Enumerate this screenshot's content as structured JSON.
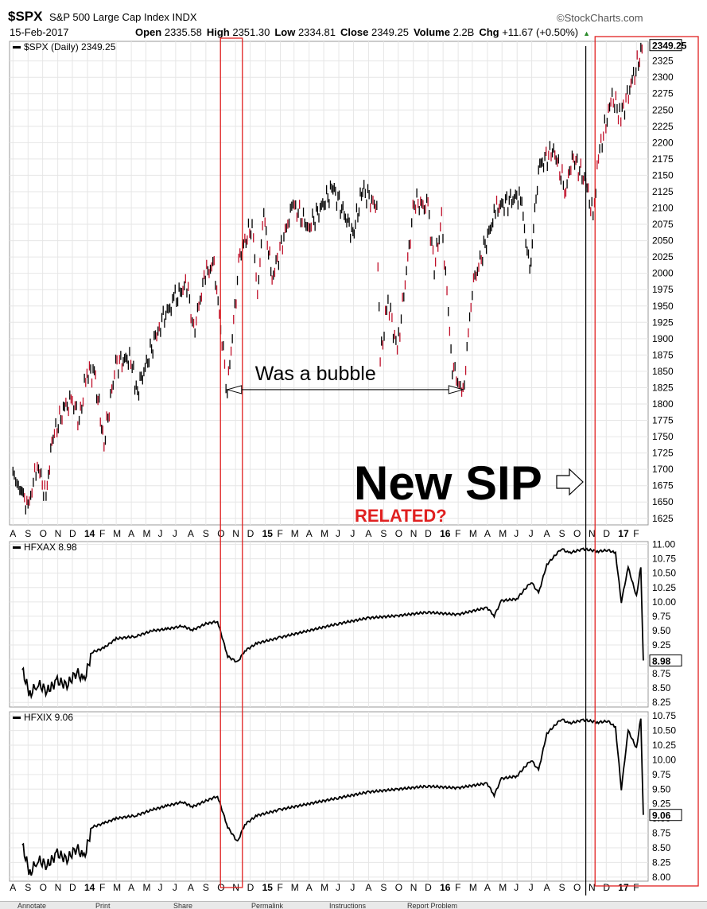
{
  "header": {
    "symbol": "$SPX",
    "name": "S&P 500 Large Cap Index",
    "exchange": "INDX",
    "brand": "©StockCharts.com",
    "date": "15-Feb-2017",
    "ohlc": [
      {
        "label": "Open",
        "value": "2335.58"
      },
      {
        "label": "High",
        "value": "2351.30"
      },
      {
        "label": "Low",
        "value": "2334.81"
      },
      {
        "label": "Close",
        "value": "2349.25"
      },
      {
        "label": "Volume",
        "value": "2.2B"
      },
      {
        "label": "Chg",
        "value": "+11.67 (+0.50%)"
      }
    ],
    "chg_arrow": "up-triangle-icon"
  },
  "colors": {
    "up": "#000000",
    "down": "#c0102a",
    "box": "#e02020",
    "annotation_red": "#e02020",
    "grid": "#e6e6e6"
  },
  "chart_data": [
    {
      "type": "candlestick",
      "legend": "$SPX (Daily) 2349.25",
      "last_value": "2349.25",
      "ylim": [
        1615,
        2355
      ],
      "yticks": [
        "1625",
        "1650",
        "1675",
        "1700",
        "1725",
        "1750",
        "1775",
        "1800",
        "1825",
        "1850",
        "1875",
        "1900",
        "1925",
        "1950",
        "1975",
        "2000",
        "2025",
        "2050",
        "2075",
        "2100",
        "2125",
        "2150",
        "2175",
        "2200",
        "2225",
        "2250",
        "2275",
        "2300",
        "2325"
      ],
      "x_month_labels": [
        "A",
        "S",
        "O",
        "N",
        "D",
        "14",
        "F",
        "M",
        "A",
        "M",
        "J",
        "J",
        "A",
        "S",
        "O",
        "N",
        "D",
        "15",
        "F",
        "M",
        "A",
        "M",
        "J",
        "J",
        "A",
        "S",
        "O",
        "N",
        "D",
        "16",
        "F",
        "M",
        "A",
        "M",
        "J",
        "J",
        "A",
        "S",
        "O",
        "N",
        "D",
        "17",
        "F"
      ],
      "x_range": [
        "2013-08",
        "2017-02-15"
      ],
      "series": [
        {
          "name": "$SPX",
          "points": [
            [
              "2013-08-01",
              1690
            ],
            [
              "2013-08-15",
              1675
            ],
            [
              "2013-09-01",
              1640
            ],
            [
              "2013-09-20",
              1710
            ],
            [
              "2013-10-08",
              1655
            ],
            [
              "2013-10-20",
              1745
            ],
            [
              "2013-11-15",
              1795
            ],
            [
              "2013-12-01",
              1805
            ],
            [
              "2013-12-15",
              1775
            ],
            [
              "2013-12-31",
              1848
            ],
            [
              "2014-01-15",
              1848
            ],
            [
              "2014-02-04",
              1740
            ],
            [
              "2014-02-28",
              1860
            ],
            [
              "2014-03-31",
              1872
            ],
            [
              "2014-04-11",
              1815
            ],
            [
              "2014-05-31",
              1925
            ],
            [
              "2014-06-30",
              1960
            ],
            [
              "2014-07-24",
              1985
            ],
            [
              "2014-08-07",
              1910
            ],
            [
              "2014-08-31",
              2000
            ],
            [
              "2014-09-18",
              2012
            ],
            [
              "2014-10-15",
              1820
            ],
            [
              "2014-11-10",
              2030
            ],
            [
              "2014-12-05",
              2075
            ],
            [
              "2014-12-16",
              1970
            ],
            [
              "2014-12-29",
              2090
            ],
            [
              "2015-01-15",
              1992
            ],
            [
              "2015-02-27",
              2105
            ],
            [
              "2015-03-31",
              2070
            ],
            [
              "2015-05-20",
              2130
            ],
            [
              "2015-06-30",
              2060
            ],
            [
              "2015-07-20",
              2128
            ],
            [
              "2015-08-18",
              2100
            ],
            [
              "2015-08-25",
              1867
            ],
            [
              "2015-09-10",
              1960
            ],
            [
              "2015-09-29",
              1880
            ],
            [
              "2015-11-03",
              2110
            ],
            [
              "2015-12-01",
              2100
            ],
            [
              "2015-12-14",
              2010
            ],
            [
              "2015-12-29",
              2080
            ],
            [
              "2016-01-20",
              1860
            ],
            [
              "2016-02-11",
              1810
            ],
            [
              "2016-03-01",
              1980
            ],
            [
              "2016-04-20",
              2100
            ],
            [
              "2016-06-08",
              2120
            ],
            [
              "2016-06-27",
              2000
            ],
            [
              "2016-07-15",
              2162
            ],
            [
              "2016-08-15",
              2190
            ],
            [
              "2016-09-09",
              2125
            ],
            [
              "2016-09-22",
              2180
            ],
            [
              "2016-10-20",
              2140
            ],
            [
              "2016-11-04",
              2085
            ],
            [
              "2016-11-15",
              2180
            ],
            [
              "2016-12-13",
              2270
            ],
            [
              "2016-12-31",
              2240
            ],
            [
              "2017-01-26",
              2300
            ],
            [
              "2017-02-15",
              2349
            ]
          ]
        }
      ]
    },
    {
      "type": "line",
      "legend": "HFXAX 8.98",
      "last_value": "8.98",
      "ylim": [
        8.17,
        11.05
      ],
      "yticks": [
        "8.25",
        "8.50",
        "8.75",
        "9.00",
        "9.25",
        "9.50",
        "9.75",
        "10.00",
        "10.25",
        "10.50",
        "10.75",
        "11.00"
      ],
      "series": [
        {
          "name": "HFXAX",
          "points": [
            [
              "2013-08-20",
              8.82
            ],
            [
              "2013-09-05",
              8.38
            ],
            [
              "2013-09-20",
              8.58
            ],
            [
              "2013-10-10",
              8.45
            ],
            [
              "2013-10-31",
              8.62
            ],
            [
              "2013-11-20",
              8.55
            ],
            [
              "2013-12-10",
              8.78
            ],
            [
              "2013-12-25",
              8.62
            ],
            [
              "2014-01-10",
              9.12
            ],
            [
              "2014-02-04",
              9.2
            ],
            [
              "2014-03-01",
              9.36
            ],
            [
              "2014-04-10",
              9.4
            ],
            [
              "2014-05-15",
              9.5
            ],
            [
              "2014-06-15",
              9.53
            ],
            [
              "2014-07-15",
              9.58
            ],
            [
              "2014-08-05",
              9.51
            ],
            [
              "2014-09-01",
              9.62
            ],
            [
              "2014-09-25",
              9.66
            ],
            [
              "2014-10-16",
              9.05
            ],
            [
              "2014-11-05",
              8.95
            ],
            [
              "2014-11-20",
              9.15
            ],
            [
              "2014-12-15",
              9.28
            ],
            [
              "2015-01-31",
              9.38
            ],
            [
              "2015-03-31",
              9.5
            ],
            [
              "2015-05-31",
              9.62
            ],
            [
              "2015-07-31",
              9.72
            ],
            [
              "2015-09-30",
              9.76
            ],
            [
              "2015-11-30",
              9.82
            ],
            [
              "2016-01-31",
              9.78
            ],
            [
              "2016-03-31",
              9.9
            ],
            [
              "2016-04-15",
              9.76
            ],
            [
              "2016-04-30",
              10.02
            ],
            [
              "2016-05-31",
              10.05
            ],
            [
              "2016-06-30",
              10.35
            ],
            [
              "2016-07-15",
              10.15
            ],
            [
              "2016-08-01",
              10.65
            ],
            [
              "2016-08-31",
              10.93
            ],
            [
              "2016-09-15",
              10.85
            ],
            [
              "2016-10-15",
              10.92
            ],
            [
              "2016-11-15",
              10.88
            ],
            [
              "2016-12-05",
              10.9
            ],
            [
              "2016-12-20",
              10.85
            ],
            [
              "2017-01-01",
              10.0
            ],
            [
              "2017-01-15",
              10.6
            ],
            [
              "2017-02-01",
              10.1
            ],
            [
              "2017-02-10",
              10.62
            ],
            [
              "2017-02-15",
              8.98
            ]
          ]
        }
      ]
    },
    {
      "type": "line",
      "legend": "HFXIX 9.06",
      "last_value": "9.06",
      "ylim": [
        7.93,
        10.82
      ],
      "yticks": [
        "8.00",
        "8.25",
        "8.50",
        "8.75",
        "9.00",
        "9.25",
        "9.50",
        "9.75",
        "10.00",
        "10.25",
        "10.50",
        "10.75"
      ],
      "series": [
        {
          "name": "HFXIX",
          "points": [
            [
              "2013-08-20",
              8.55
            ],
            [
              "2013-09-05",
              8.05
            ],
            [
              "2013-09-20",
              8.3
            ],
            [
              "2013-10-10",
              8.2
            ],
            [
              "2013-10-31",
              8.4
            ],
            [
              "2013-11-20",
              8.3
            ],
            [
              "2013-12-10",
              8.5
            ],
            [
              "2013-12-25",
              8.32
            ],
            [
              "2014-01-10",
              8.85
            ],
            [
              "2014-02-04",
              8.92
            ],
            [
              "2014-03-01",
              9.0
            ],
            [
              "2014-04-10",
              9.05
            ],
            [
              "2014-05-15",
              9.15
            ],
            [
              "2014-06-15",
              9.22
            ],
            [
              "2014-07-15",
              9.28
            ],
            [
              "2014-08-05",
              9.2
            ],
            [
              "2014-09-01",
              9.3
            ],
            [
              "2014-09-25",
              9.38
            ],
            [
              "2014-10-16",
              8.85
            ],
            [
              "2014-11-05",
              8.6
            ],
            [
              "2014-11-20",
              8.9
            ],
            [
              "2014-12-15",
              9.05
            ],
            [
              "2015-01-31",
              9.15
            ],
            [
              "2015-03-31",
              9.25
            ],
            [
              "2015-05-31",
              9.35
            ],
            [
              "2015-07-31",
              9.45
            ],
            [
              "2015-09-30",
              9.5
            ],
            [
              "2015-11-30",
              9.55
            ],
            [
              "2016-01-31",
              9.52
            ],
            [
              "2016-03-31",
              9.6
            ],
            [
              "2016-04-15",
              9.4
            ],
            [
              "2016-04-30",
              9.68
            ],
            [
              "2016-05-31",
              9.72
            ],
            [
              "2016-06-30",
              10.0
            ],
            [
              "2016-07-15",
              9.82
            ],
            [
              "2016-08-01",
              10.45
            ],
            [
              "2016-08-31",
              10.7
            ],
            [
              "2016-09-15",
              10.62
            ],
            [
              "2016-10-15",
              10.68
            ],
            [
              "2016-11-15",
              10.64
            ],
            [
              "2016-12-05",
              10.66
            ],
            [
              "2016-12-20",
              10.55
            ],
            [
              "2017-01-01",
              9.5
            ],
            [
              "2017-01-15",
              10.5
            ],
            [
              "2017-02-01",
              10.2
            ],
            [
              "2017-02-10",
              10.72
            ],
            [
              "2017-02-15",
              9.06
            ]
          ]
        }
      ]
    }
  ],
  "annotations": {
    "bubble_text": "Was a bubble",
    "new_sip": "New SIP",
    "related": "RELATED?",
    "bubble_span": [
      "2014-10-15",
      "2016-02-11"
    ],
    "bubble_level": 1822,
    "red_box_1": [
      "2014-10-01",
      "2014-11-15"
    ],
    "red_box_2": [
      "2016-11-08",
      "2017-02-28"
    ],
    "vline": "2016-10-20"
  },
  "toolbar": [
    "Annotate",
    "Print",
    "Share",
    "Permalink",
    "Instructions",
    "Report Problem"
  ]
}
